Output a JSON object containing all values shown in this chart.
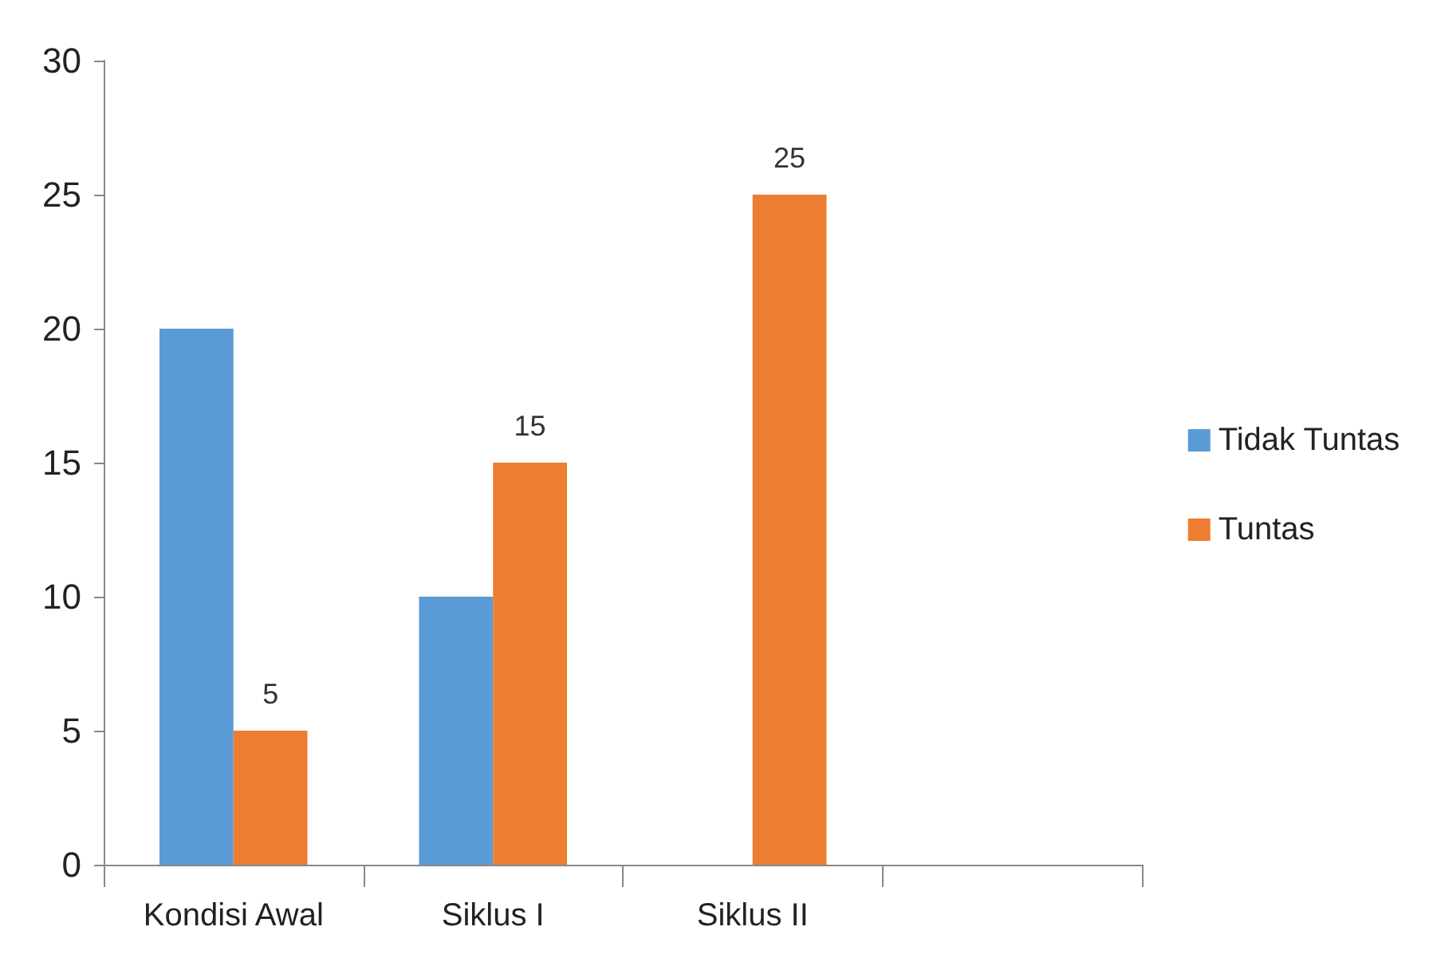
{
  "chart_data": {
    "type": "bar",
    "categories": [
      "Kondisi Awal",
      "Siklus I",
      "Siklus II",
      null
    ],
    "series": [
      {
        "name": "Tidak Tuntas",
        "color": "#5b9bd5",
        "values": [
          20,
          10,
          0,
          null
        ]
      },
      {
        "name": "Tuntas",
        "color": "#ed7d31",
        "values": [
          5,
          15,
          25,
          null
        ],
        "value_labels": [
          "5",
          "15",
          "25",
          null
        ]
      }
    ],
    "ylim": [
      0,
      30
    ],
    "yticks": [
      0,
      5,
      10,
      15,
      20,
      25,
      30
    ],
    "grid": false,
    "legend": "right"
  }
}
